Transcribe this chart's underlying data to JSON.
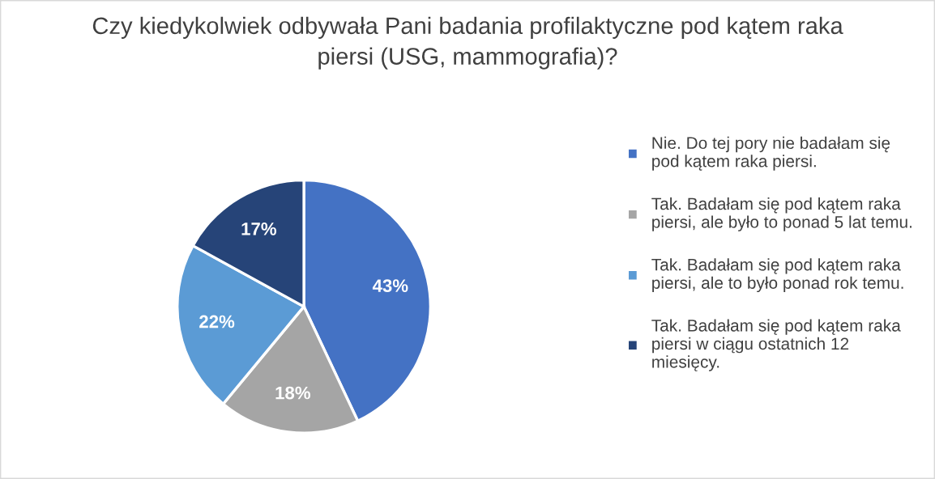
{
  "chart_data": {
    "type": "pie",
    "title": "Czy kiedykolwiek odbywała Pani badania profilaktyczne pod kątem raka\npiersi (USG, mammografia)?",
    "categories": [
      "Nie. Do tej pory nie badałam się\npod kątem raka piersi.",
      "Tak. Badałam się pod kątem raka\npiersi, ale było to ponad 5 lat temu.",
      "Tak. Badałam się pod kątem raka\npiersi, ale to było ponad rok temu.",
      "Tak. Badałam się pod kątem raka\npiersi w ciągu ostatnich 12\nmiesięcy."
    ],
    "values": [
      43,
      18,
      22,
      17
    ],
    "colors": [
      "#4472c4",
      "#a5a5a5",
      "#5b9bd5",
      "#264478"
    ],
    "value_labels": [
      "43%",
      "18%",
      "22%",
      "17%"
    ],
    "legend": "right"
  }
}
